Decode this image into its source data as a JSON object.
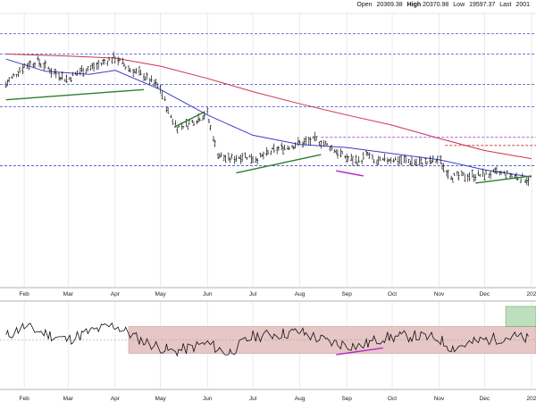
{
  "header": {
    "open_label": "Open",
    "open_value": "20369.38",
    "high_label": "High",
    "high_value": "20370.98",
    "low_label": "Low",
    "low_value": "19597.37",
    "last_label": "Last",
    "last_value": "2001"
  },
  "chart_data": [
    {
      "type": "ohlc",
      "panel": "price",
      "title": "",
      "xlabel": "",
      "ylabel": "",
      "x_tick_labels": [
        "Feb",
        "Mar",
        "Apr",
        "May",
        "Jun",
        "Jul",
        "Aug",
        "Sep",
        "Oct",
        "Nov",
        "Dec",
        "202"
      ],
      "x_tick_dates": [
        "2024-02-01",
        "2024-03-01",
        "2024-04-01",
        "2024-05-01",
        "2024-06-01",
        "2024-07-01",
        "2024-08-01",
        "2024-09-01",
        "2024-10-01",
        "2024-11-01",
        "2024-12-01",
        "2025-01-01"
      ],
      "ylim": [
        19200,
        21900
      ],
      "grid": "vertical",
      "price_series": {
        "name": "",
        "points": [
          [
            "2024-01-20",
            21200
          ],
          [
            "2024-02-01",
            21380
          ],
          [
            "2024-02-10",
            21430
          ],
          [
            "2024-02-20",
            21330
          ],
          [
            "2024-03-01",
            21250
          ],
          [
            "2024-03-10",
            21340
          ],
          [
            "2024-03-20",
            21380
          ],
          [
            "2024-04-01",
            21470
          ],
          [
            "2024-04-10",
            21360
          ],
          [
            "2024-04-20",
            21290
          ],
          [
            "2024-05-01",
            21170
          ],
          [
            "2024-05-06",
            20950
          ],
          [
            "2024-05-12",
            20780
          ],
          [
            "2024-05-20",
            20810
          ],
          [
            "2024-06-01",
            20920
          ],
          [
            "2024-06-05",
            20700
          ],
          [
            "2024-06-08",
            20520
          ],
          [
            "2024-06-15",
            20460
          ],
          [
            "2024-06-25",
            20500
          ],
          [
            "2024-07-05",
            20470
          ],
          [
            "2024-07-15",
            20550
          ],
          [
            "2024-08-01",
            20620
          ],
          [
            "2024-08-12",
            20660
          ],
          [
            "2024-08-20",
            20600
          ],
          [
            "2024-09-01",
            20480
          ],
          [
            "2024-09-10",
            20440
          ],
          [
            "2024-09-15",
            20520
          ],
          [
            "2024-09-20",
            20430
          ],
          [
            "2024-10-01",
            20470
          ],
          [
            "2024-10-15",
            20440
          ],
          [
            "2024-10-25",
            20430
          ],
          [
            "2024-11-01",
            20460
          ],
          [
            "2024-11-05",
            20380
          ],
          [
            "2024-11-10",
            20290
          ],
          [
            "2024-11-20",
            20300
          ],
          [
            "2024-12-01",
            20310
          ],
          [
            "2024-12-10",
            20330
          ],
          [
            "2024-12-20",
            20300
          ],
          [
            "2025-01-01",
            20260
          ]
        ]
      },
      "moving_averages": [
        {
          "name": "",
          "color": "#3b3bc9",
          "points": [
            [
              "2024-01-20",
              21450
            ],
            [
              "2024-02-15",
              21330
            ],
            [
              "2024-03-15",
              21300
            ],
            [
              "2024-04-01",
              21340
            ],
            [
              "2024-05-01",
              21150
            ],
            [
              "2024-06-01",
              20900
            ],
            [
              "2024-07-01",
              20700
            ],
            [
              "2024-08-01",
              20610
            ],
            [
              "2024-09-01",
              20580
            ],
            [
              "2024-10-01",
              20520
            ],
            [
              "2024-11-01",
              20460
            ],
            [
              "2024-12-01",
              20360
            ],
            [
              "2025-01-01",
              20290
            ]
          ]
        },
        {
          "name": "",
          "color": "#cc3355",
          "points": [
            [
              "2024-01-20",
              21500
            ],
            [
              "2024-03-01",
              21480
            ],
            [
              "2024-04-01",
              21460
            ],
            [
              "2024-05-01",
              21380
            ],
            [
              "2024-06-01",
              21260
            ],
            [
              "2024-07-01",
              21130
            ],
            [
              "2024-08-01",
              21010
            ],
            [
              "2024-09-01",
              20900
            ],
            [
              "2024-10-01",
              20800
            ],
            [
              "2024-11-01",
              20670
            ],
            [
              "2024-12-01",
              20550
            ],
            [
              "2025-01-01",
              20470
            ]
          ]
        }
      ],
      "horizontal_levels": [
        {
          "value": 21700,
          "color": "#4747c8",
          "style": "dashed"
        },
        {
          "value": 21500,
          "color": "#4747c8",
          "style": "dashed"
        },
        {
          "value": 21200,
          "color": "#4747c8",
          "style": "dashed"
        },
        {
          "value": 20980,
          "color": "#4747c8",
          "style": "dashed"
        },
        {
          "value": 20680,
          "color": "#8a2fd8",
          "style": "dashed"
        },
        {
          "value": 20400,
          "color": "#4747c8",
          "style": "dashed"
        },
        {
          "value": 20600,
          "color": "#c62828",
          "style": "dashed"
        }
      ],
      "trendlines": [
        {
          "color": "#2f7d2f",
          "from": [
            "2024-01-20",
            21050
          ],
          "to": [
            "2024-04-20",
            21150
          ]
        },
        {
          "color": "#2f7d2f",
          "from": [
            "2024-05-10",
            20780
          ],
          "to": [
            "2024-05-30",
            20930
          ]
        },
        {
          "color": "#2f7d2f",
          "from": [
            "2024-06-20",
            20330
          ],
          "to": [
            "2024-08-15",
            20510
          ]
        },
        {
          "color": "#2f7d2f",
          "from": [
            "2024-11-25",
            20230
          ],
          "to": [
            "2025-01-01",
            20300
          ]
        },
        {
          "color": "#b31fc6",
          "from": [
            "2024-08-25",
            20350
          ],
          "to": [
            "2024-09-12",
            20300
          ]
        }
      ]
    },
    {
      "type": "line",
      "panel": "oscillator",
      "title": "",
      "xlabel": "",
      "ylabel": "",
      "x_tick_labels": [
        "Feb",
        "Mar",
        "Apr",
        "May",
        "Jun",
        "Jul",
        "Aug",
        "Sep",
        "Oct",
        "Nov",
        "Dec",
        "202"
      ],
      "ylim": [
        0,
        100
      ],
      "bands": [
        {
          "from": 30,
          "to": 70,
          "color": "#e7c6c6"
        },
        {
          "from": 70,
          "to": 100,
          "color": "#bedfbe"
        }
      ],
      "series": [
        {
          "name": "",
          "points": [
            [
              "2024-01-20",
              55
            ],
            [
              "2024-02-01",
              70
            ],
            [
              "2024-02-15",
              60
            ],
            [
              "2024-03-01",
              50
            ],
            [
              "2024-03-15",
              62
            ],
            [
              "2024-04-01",
              72
            ],
            [
              "2024-04-20",
              48
            ],
            [
              "2024-05-10",
              32
            ],
            [
              "2024-06-01",
              45
            ],
            [
              "2024-06-15",
              30
            ],
            [
              "2024-07-01",
              55
            ],
            [
              "2024-08-01",
              62
            ],
            [
              "2024-08-20",
              47
            ],
            [
              "2024-09-10",
              40
            ],
            [
              "2024-09-25",
              53
            ],
            [
              "2024-10-15",
              56
            ],
            [
              "2024-11-01",
              52
            ],
            [
              "2024-11-10",
              38
            ],
            [
              "2024-12-01",
              50
            ],
            [
              "2024-12-20",
              55
            ],
            [
              "2025-01-01",
              50
            ]
          ]
        }
      ]
    }
  ]
}
